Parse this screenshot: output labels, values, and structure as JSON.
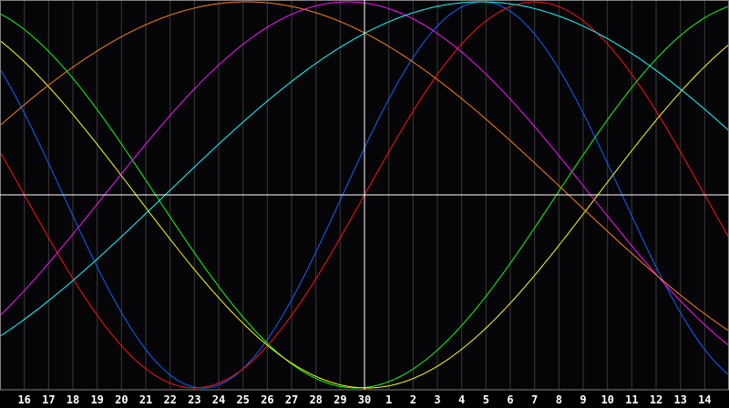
{
  "chart_data": {
    "type": "line",
    "title": "",
    "xlabel": "",
    "ylabel": "",
    "x_tick_labels": [
      "16",
      "17",
      "18",
      "19",
      "20",
      "21",
      "22",
      "23",
      "24",
      "25",
      "26",
      "27",
      "28",
      "29",
      "30",
      "1",
      "2",
      "3",
      "4",
      "5",
      "6",
      "7",
      "8",
      "9",
      "10",
      "11",
      "12",
      "13",
      "14"
    ],
    "center_label": "30",
    "ylim": [
      -1,
      1
    ],
    "grid": true,
    "legend": "none",
    "background": "#050508",
    "grid_color": "#3a3a3a",
    "axis_color": "#ffffff",
    "series": [
      {
        "color": "#0a64ff",
        "period_days": 23,
        "rising_zero_day_offset": -0.9
      },
      {
        "color": "#ff1010",
        "period_days": 28,
        "rising_zero_day_offset": 0
      },
      {
        "color": "#10ff10",
        "period_days": 33,
        "rising_zero_day_offset": 7.9
      },
      {
        "color": "#ffff10",
        "period_days": 38,
        "rising_zero_day_offset": 9.6
      },
      {
        "color": "#ff10ff",
        "period_days": 40,
        "rising_zero_day_offset": -10.7
      },
      {
        "color": "#10ffff",
        "period_days": 52,
        "rising_zero_day_offset": -8.2
      },
      {
        "color": "#ff8010",
        "period_days": 53,
        "rising_zero_day_offset": -18.1
      }
    ]
  }
}
